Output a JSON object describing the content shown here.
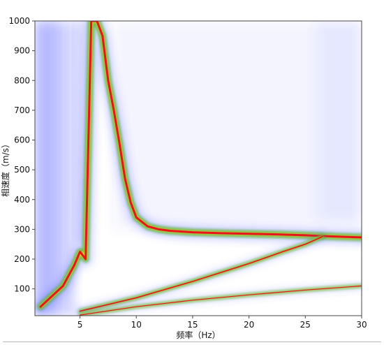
{
  "chart_data": {
    "type": "heatmap",
    "title": "",
    "xlabel": "频率（Hz）",
    "ylabel": "相速度（m/s）",
    "xlim": [
      1,
      30
    ],
    "ylim": [
      10,
      1000
    ],
    "x_ticks": [
      5,
      10,
      15,
      20,
      25,
      30
    ],
    "y_ticks": [
      100,
      200,
      300,
      400,
      500,
      600,
      700,
      800,
      900,
      1000
    ],
    "grid": false,
    "colormap": [
      "#ffffff",
      "#4f55ff",
      "#1a9a2a",
      "#f2e12a",
      "#e8141a"
    ],
    "series": [
      {
        "x": [
          1.5,
          2.5,
          3.5,
          4.5,
          5.0,
          5.5,
          6.0,
          6.5,
          7.0,
          7.5,
          8.0,
          8.5,
          9.0,
          9.5,
          10,
          11,
          12,
          13,
          15,
          17.5,
          20,
          22.5,
          25,
          27.5,
          30
        ],
        "y": [
          40,
          75,
          110,
          180,
          225,
          200,
          1000,
          1000,
          950,
          800,
          700,
          590,
          470,
          390,
          340,
          310,
          300,
          295,
          290,
          287,
          285,
          283,
          280,
          276,
          273
        ]
      },
      {
        "x": [
          5,
          10,
          15,
          20,
          23,
          25,
          26.5
        ],
        "y": [
          25,
          70,
          125,
          185,
          225,
          250,
          275
        ]
      },
      {
        "x": [
          5,
          10,
          15,
          20,
          25,
          30
        ],
        "y": [
          12,
          40,
          62,
          80,
          96,
          110
        ]
      }
    ]
  }
}
